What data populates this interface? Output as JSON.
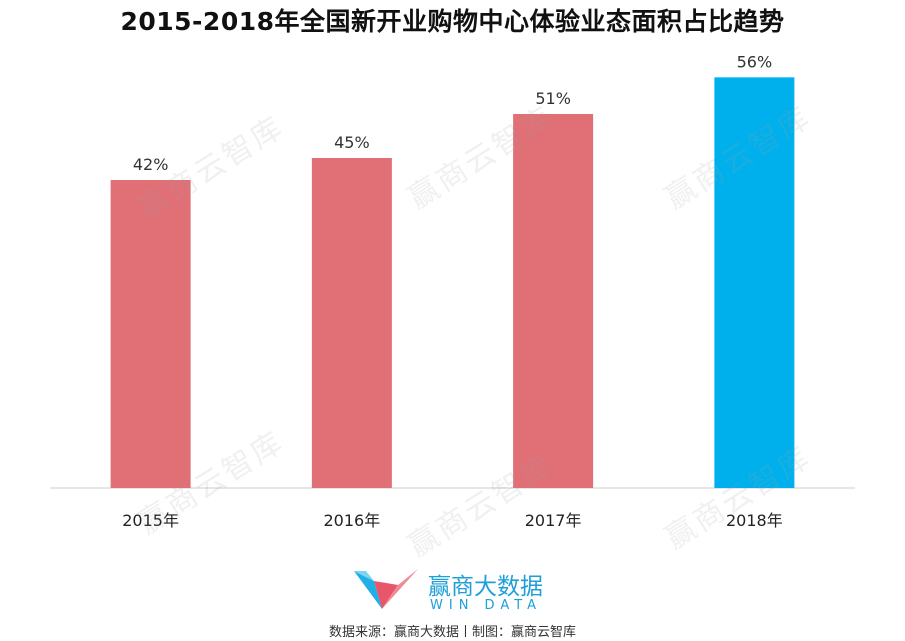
{
  "chart_data": {
    "type": "bar",
    "title": "2015-2018年全国新开业购物中心体验业态面积占比趋势",
    "categories": [
      "2015年",
      "2016年",
      "2017年",
      "2018年"
    ],
    "values": [
      42,
      45,
      51,
      56
    ],
    "value_labels": [
      "42%",
      "45%",
      "51%",
      "56%"
    ],
    "unit": "%",
    "ylim": [
      0,
      60
    ],
    "grid": false,
    "colors": {
      "default_bar": "#e06f76",
      "highlight_bar": "#00b0ec",
      "axis": "#cccccc"
    },
    "highlight_index": 3
  },
  "watermark": {
    "text": "赢商云智库"
  },
  "brand": {
    "name_cn": "赢商大数据",
    "name_en": "WIN DATA"
  },
  "footer": {
    "source": "数据来源：赢商大数据丨制图：赢商云智库"
  }
}
